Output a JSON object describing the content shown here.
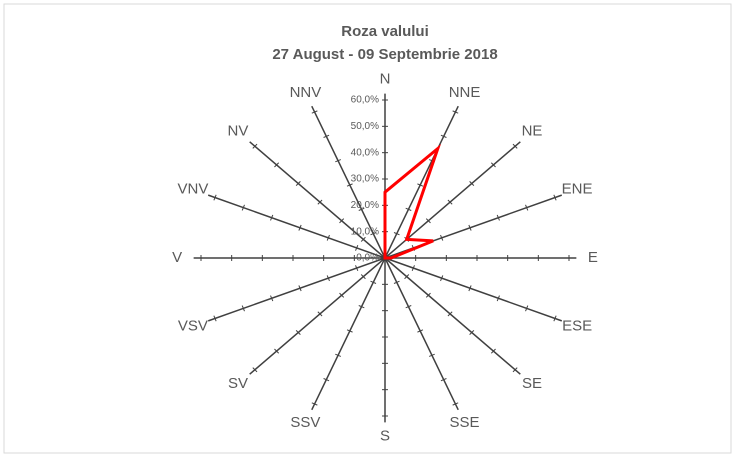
{
  "chart_data": {
    "type": "radar",
    "title": "Roza valului",
    "subtitle": "27 August  - 09 Septembrie 2018",
    "categories": [
      "N",
      "NNE",
      "NE",
      "ENE",
      "E",
      "ESE",
      "SE",
      "SSE",
      "S",
      "SSV",
      "SV",
      "VSV",
      "V",
      "VNV",
      "NV",
      "NNV"
    ],
    "series": [
      {
        "name": "Roza valului",
        "color": "#ff0000",
        "values": [
          25,
          45,
          10,
          17,
          2,
          0,
          0,
          0,
          0,
          0,
          0,
          0,
          0,
          0,
          0,
          0
        ]
      }
    ],
    "ylim": [
      0,
      60
    ],
    "yticks": [
      {
        "value": 0,
        "label": "0,0%"
      },
      {
        "value": 10,
        "label": "10,0%"
      },
      {
        "value": 20,
        "label": "20,0%"
      },
      {
        "value": 30,
        "label": "30,0%"
      },
      {
        "value": 40,
        "label": "40,0%"
      },
      {
        "value": 50,
        "label": "50,0%"
      },
      {
        "value": 60,
        "label": "60,0%"
      }
    ]
  }
}
